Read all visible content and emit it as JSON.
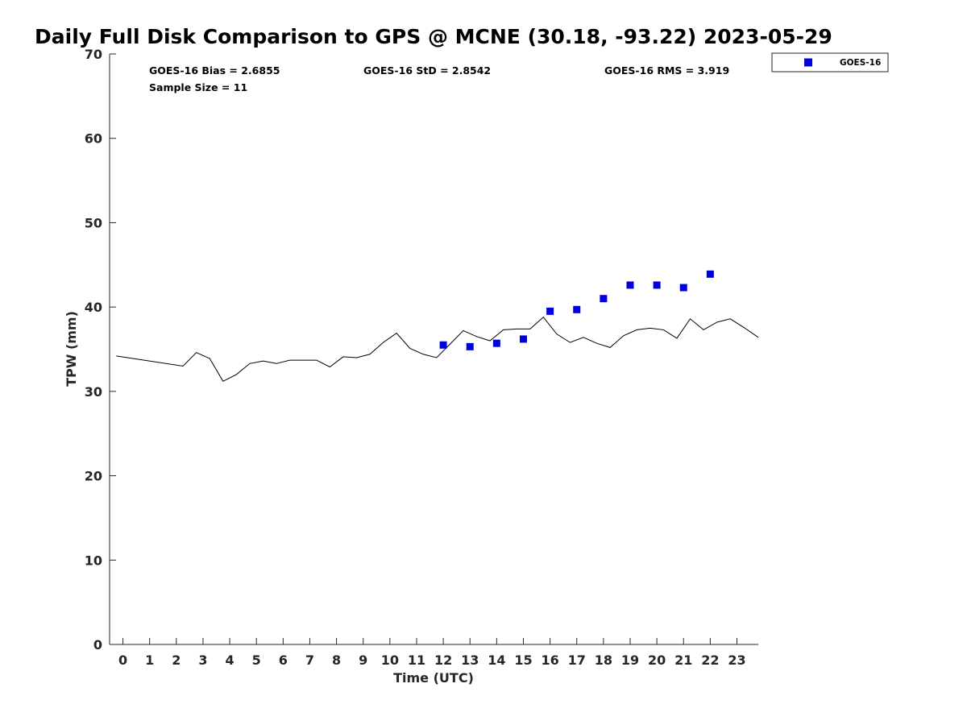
{
  "chart_data": {
    "type": "scatter",
    "title": "Daily Full Disk Comparison to GPS @ MCNE (30.18, -93.22) 2023-05-29",
    "xlabel": "Time (UTC)",
    "ylabel": "TPW (mm)",
    "xlim": [
      -0.5,
      23.8
    ],
    "ylim": [
      0,
      70
    ],
    "x_ticks": [
      0,
      1,
      2,
      3,
      4,
      5,
      6,
      7,
      8,
      9,
      10,
      11,
      12,
      13,
      14,
      15,
      16,
      17,
      18,
      19,
      20,
      21,
      22,
      23
    ],
    "y_ticks": [
      0,
      10,
      20,
      30,
      40,
      50,
      60,
      70
    ],
    "grid": false,
    "legend_position": "top-right",
    "stats": {
      "bias": "GOES-16 Bias = 2.6855",
      "std": "GOES-16 StD = 2.8542",
      "rms": "GOES-16 RMS = 3.919",
      "sample": "Sample Size = 11"
    },
    "series": [
      {
        "name": "GOES-16",
        "type": "scatter",
        "marker": "square",
        "color": "#0000dd",
        "x": [
          12,
          13,
          14,
          15,
          16,
          17,
          18,
          19,
          20,
          21,
          22
        ],
        "y": [
          35.5,
          35.3,
          35.7,
          36.2,
          39.5,
          39.7,
          41.0,
          42.6,
          42.6,
          42.3,
          43.9
        ]
      },
      {
        "type": "line",
        "color": "#000000",
        "x": [
          -0.25,
          2.25,
          2.75,
          3.25,
          3.75,
          4.25,
          4.75,
          5.25,
          5.75,
          6.25,
          6.75,
          7.25,
          7.75,
          8.25,
          8.75,
          9.25,
          9.75,
          10.25,
          10.75,
          11.25,
          11.75,
          12.25,
          12.75,
          13.25,
          13.75,
          14.25,
          14.75,
          15.25,
          15.75,
          16.25,
          16.75,
          17.25,
          17.75,
          18.25,
          18.75,
          19.25,
          19.75,
          20.25,
          20.75,
          21.25,
          21.75,
          22.25,
          22.75,
          23.25,
          23.8
        ],
        "y": [
          34.2,
          33.0,
          34.6,
          33.9,
          31.2,
          32.0,
          33.3,
          33.6,
          33.3,
          33.7,
          33.7,
          33.7,
          32.9,
          34.1,
          34.0,
          34.4,
          35.8,
          36.9,
          35.1,
          34.4,
          34.0,
          35.6,
          37.2,
          36.5,
          36.0,
          37.3,
          37.4,
          37.4,
          38.8,
          36.8,
          35.8,
          36.4,
          35.7,
          35.2,
          36.6,
          37.3,
          37.5,
          37.3,
          36.3,
          38.6,
          37.3,
          38.2,
          38.6,
          37.6,
          36.4
        ]
      }
    ]
  }
}
